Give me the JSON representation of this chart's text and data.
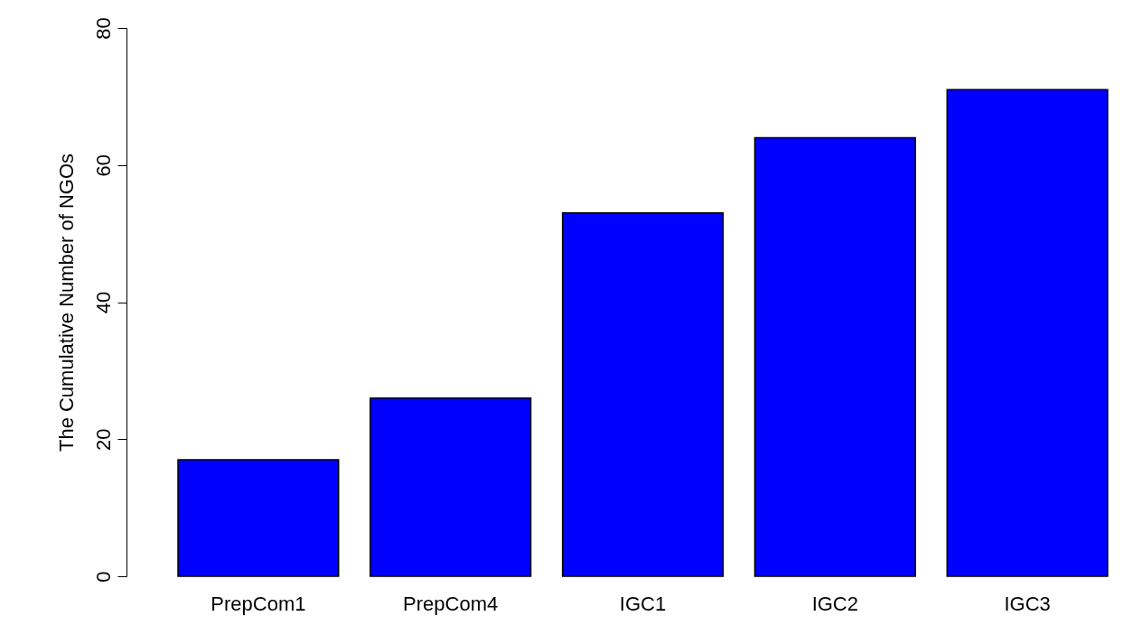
{
  "chart_data": {
    "type": "bar",
    "ylabel": "The Cumulative Number of NGOs",
    "categories": [
      "PrepCom1",
      "PrepCom4",
      "IGC1",
      "IGC2",
      "IGC3"
    ],
    "values": [
      17,
      26,
      53,
      64,
      71
    ],
    "color": "#0000ff",
    "ylim": [
      0,
      80
    ],
    "yticks": [
      0,
      20,
      40,
      60,
      80
    ],
    "grid": false
  }
}
